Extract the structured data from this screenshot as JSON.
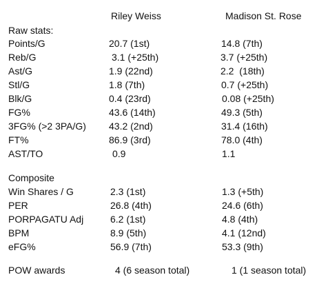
{
  "header": {
    "player_a": "Riley Weiss",
    "player_b": "Madison St. Rose"
  },
  "raw_stats": {
    "title": "Raw stats:",
    "rows": [
      {
        "label": "Points/G",
        "a": "20.7 (1st)",
        "b": "14.8 (7th)"
      },
      {
        "label": "Reb/G",
        "a": "3.1 (+25th)",
        "b": "3.7 (+25th)"
      },
      {
        "label": "Ast/G",
        "a": "1.9 (22nd)",
        "b": "2.2  (18th)"
      },
      {
        "label": "Stl/G",
        "a": "1.8 (7th)",
        "b": "0.7 (+25th)"
      },
      {
        "label": "Blk/G",
        "a": "0.4 (23rd)",
        "b": "0.08 (+25th)"
      },
      {
        "label": "FG%",
        "a": "43.6 (14th)",
        "b": "49.3 (5th)"
      },
      {
        "label": "3FG% (>2 3PA/G)",
        "a": "43.2 (2nd)",
        "b": "31.4 (16th)"
      },
      {
        "label": "FT%",
        "a": "86.9 (3rd)",
        "b": "78.0 (4th)"
      },
      {
        "label": "AST/TO",
        "a": "0.9",
        "b": "1.1"
      }
    ]
  },
  "composite": {
    "title": "Composite",
    "rows": [
      {
        "label": "Win Shares / G",
        "a": "2.3 (1st)",
        "b": "1.3 (+5th)"
      },
      {
        "label": "PER",
        "a": "26.8 (4th)",
        "b": "24.6 (6th)"
      },
      {
        "label": "PORPAGATU Adj",
        "a": "6.2 (1st)",
        "b": "4.8 (4th)"
      },
      {
        "label": "BPM",
        "a": "8.9 (5th)",
        "b": "4.1 (12nd)"
      },
      {
        "label": "eFG%",
        "a": "56.9 (7th)",
        "b": "53.3 (9th)"
      }
    ]
  },
  "pow": {
    "label": "POW awards",
    "a": "4 (6 season total)",
    "b": "1 (1 season total)"
  }
}
